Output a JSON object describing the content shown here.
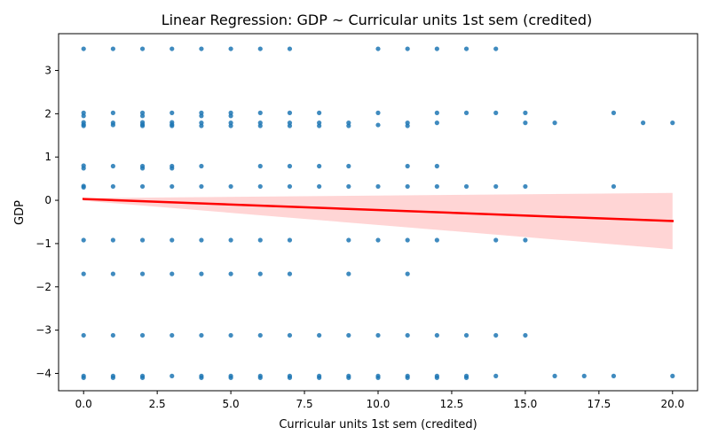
{
  "chart_data": {
    "type": "scatter",
    "title": "Linear Regression: GDP ~ Curricular units 1st sem (credited)",
    "xlabel": "Curricular units 1st sem (credited)",
    "ylabel": "GDP",
    "xlim": [
      -0.85,
      20.85
    ],
    "ylim": [
      -4.4,
      3.85
    ],
    "xticks": [
      0.0,
      2.5,
      5.0,
      7.5,
      10.0,
      12.5,
      15.0,
      17.5,
      20.0
    ],
    "xtick_labels": [
      "0.0",
      "2.5",
      "5.0",
      "7.5",
      "10.0",
      "12.5",
      "15.0",
      "17.5",
      "20.0"
    ],
    "yticks": [
      -4,
      -3,
      -2,
      -1,
      0,
      1,
      2,
      3
    ],
    "ytick_labels": [
      "−4",
      "−3",
      "−2",
      "−1",
      "0",
      "1",
      "2",
      "3"
    ],
    "grid": false,
    "colors": {
      "points": "#1f77b4",
      "line": "#ff0000",
      "band": "#ffb3b3"
    },
    "points": {
      "x": [
        0,
        0,
        0,
        0,
        0,
        0,
        0,
        0,
        0,
        0,
        0,
        0,
        0,
        0,
        0,
        1,
        1,
        1,
        1,
        1,
        1,
        1,
        1,
        1,
        1,
        1,
        2,
        2,
        2,
        2,
        2,
        2,
        2,
        2,
        2,
        2,
        2,
        2,
        2,
        2,
        3,
        3,
        3,
        3,
        3,
        3,
        3,
        3,
        3,
        3,
        3,
        3,
        4,
        4,
        4,
        4,
        4,
        4,
        4,
        4,
        4,
        4,
        4,
        4,
        5,
        5,
        5,
        5,
        5,
        5,
        5,
        5,
        5,
        5,
        5,
        6,
        6,
        6,
        6,
        6,
        6,
        6,
        6,
        6,
        6,
        6,
        7,
        7,
        7,
        7,
        7,
        7,
        7,
        7,
        7,
        7,
        7,
        8,
        8,
        8,
        8,
        8,
        8,
        8,
        8,
        9,
        9,
        9,
        9,
        9,
        9,
        9,
        9,
        9,
        10,
        10,
        10,
        10,
        10,
        10,
        10,
        10,
        11,
        11,
        11,
        11,
        11,
        11,
        11,
        11,
        11,
        11,
        12,
        12,
        12,
        12,
        12,
        12,
        12,
        12,
        12,
        13,
        13,
        13,
        13,
        13,
        13,
        14,
        14,
        14,
        14,
        14,
        14,
        15,
        15,
        15,
        15,
        15,
        16,
        16,
        17,
        18,
        18,
        18,
        19,
        20,
        20
      ],
      "y": [
        3.5,
        2.02,
        1.95,
        1.8,
        1.75,
        1.72,
        0.8,
        0.74,
        0.33,
        0.3,
        -0.92,
        -1.7,
        -3.12,
        -4.06,
        -4.1,
        3.5,
        2.02,
        1.79,
        1.74,
        0.79,
        0.32,
        -0.92,
        -1.7,
        -3.12,
        -4.06,
        -4.1,
        3.5,
        2.02,
        1.95,
        1.8,
        1.75,
        1.72,
        0.79,
        0.74,
        0.32,
        -0.92,
        -1.7,
        -3.12,
        -4.06,
        -4.1,
        3.5,
        2.02,
        1.8,
        1.75,
        1.72,
        0.79,
        0.74,
        0.32,
        -0.92,
        -1.7,
        -3.12,
        -4.06,
        3.5,
        2.02,
        1.95,
        1.79,
        1.72,
        0.79,
        0.32,
        -0.92,
        -1.7,
        -3.12,
        -4.06,
        -4.1,
        3.5,
        2.02,
        1.95,
        1.79,
        1.72,
        0.32,
        -0.92,
        -1.7,
        -3.12,
        -4.06,
        -4.1,
        3.5,
        2.02,
        1.79,
        1.72,
        0.79,
        0.32,
        -0.92,
        -1.7,
        -3.12,
        -4.06,
        -4.1,
        3.5,
        2.02,
        1.79,
        1.72,
        0.79,
        0.32,
        -0.92,
        -1.7,
        -3.12,
        -4.06,
        -4.1,
        2.02,
        1.79,
        1.72,
        0.79,
        0.32,
        -3.12,
        -4.06,
        -4.1,
        1.79,
        1.72,
        0.79,
        0.32,
        -0.92,
        -1.7,
        -3.12,
        -4.06,
        -4.1,
        3.5,
        2.02,
        1.74,
        0.32,
        -0.92,
        -3.12,
        -4.06,
        -4.1,
        3.5,
        1.79,
        1.72,
        0.79,
        0.32,
        -0.92,
        -1.7,
        -3.12,
        -4.06,
        -4.1,
        3.5,
        2.02,
        1.79,
        0.79,
        0.32,
        -0.92,
        -3.12,
        -4.06,
        -4.1,
        3.5,
        2.02,
        0.32,
        -3.12,
        -4.06,
        -4.1,
        3.5,
        2.02,
        0.32,
        -0.92,
        -3.12,
        -4.06,
        2.02,
        1.79,
        0.32,
        -0.92,
        -3.12,
        1.79,
        -4.06,
        -4.06,
        2.02,
        0.32,
        -4.06,
        1.79,
        1.79,
        -4.06
      ]
    },
    "regression": {
      "x": [
        0,
        20
      ],
      "y": [
        0.03,
        -0.48
      ],
      "ci_upper": [
        0.05,
        0.17
      ],
      "ci_lower": [
        -0.01,
        -1.13
      ]
    }
  }
}
